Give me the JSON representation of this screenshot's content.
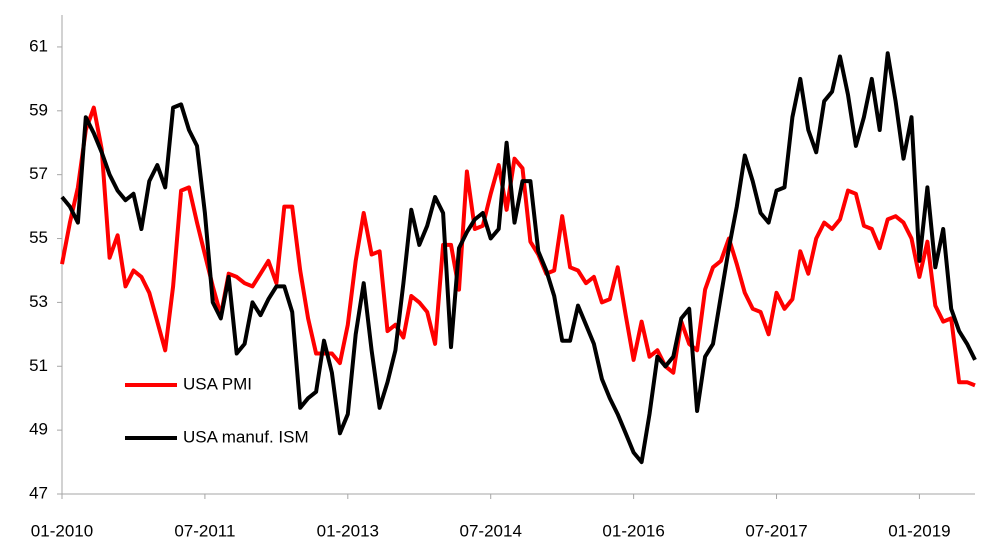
{
  "chart_data": {
    "type": "line",
    "categories": [
      "01-2010",
      null,
      null,
      null,
      null,
      null,
      null,
      null,
      null,
      null,
      null,
      null,
      null,
      null,
      null,
      null,
      null,
      null,
      "07-2011",
      null,
      null,
      null,
      null,
      null,
      null,
      null,
      null,
      null,
      null,
      null,
      null,
      null,
      null,
      null,
      null,
      null,
      "01-2013",
      null,
      null,
      null,
      null,
      null,
      null,
      null,
      null,
      null,
      null,
      null,
      null,
      null,
      null,
      null,
      null,
      null,
      "07-2014",
      null,
      null,
      null,
      null,
      null,
      null,
      null,
      null,
      null,
      null,
      null,
      null,
      null,
      null,
      null,
      null,
      null,
      "01-2016",
      null,
      null,
      null,
      null,
      null,
      null,
      null,
      null,
      null,
      null,
      null,
      null,
      null,
      null,
      null,
      null,
      null,
      "07-2017",
      null,
      null,
      null,
      null,
      null,
      null,
      null,
      null,
      null,
      null,
      null,
      null,
      null,
      null,
      null,
      null,
      null,
      "01-2019",
      null,
      null,
      null,
      null,
      null,
      null,
      null
    ],
    "series": [
      {
        "name": "USA PMI",
        "color": "#ff0000",
        "values": [
          54.2,
          55.5,
          56.6,
          58.4,
          59.1,
          57.8,
          54.4,
          55.1,
          53.5,
          54.0,
          53.8,
          53.3,
          52.4,
          51.5,
          53.5,
          56.5,
          56.6,
          55.5,
          54.5,
          53.5,
          52.6,
          53.9,
          53.8,
          53.6,
          53.5,
          53.9,
          54.3,
          53.6,
          56.0,
          56.0,
          54.0,
          52.5,
          51.4,
          51.4,
          51.4,
          51.1,
          52.3,
          54.3,
          55.8,
          54.5,
          54.6,
          52.1,
          52.3,
          51.9,
          53.2,
          53.0,
          52.7,
          51.7,
          54.8,
          54.8,
          53.4,
          57.1,
          55.3,
          55.4,
          56.4,
          57.3,
          55.9,
          57.5,
          57.2,
          54.9,
          54.5,
          53.9,
          54.0,
          55.7,
          54.1,
          54.0,
          53.6,
          53.8,
          53.0,
          53.1,
          54.1,
          52.6,
          51.2,
          52.4,
          51.3,
          51.5,
          51.0,
          50.8,
          52.4,
          51.7,
          51.5,
          53.4,
          54.1,
          54.3,
          55.0,
          54.2,
          53.3,
          52.8,
          52.7,
          52.0,
          53.3,
          52.8,
          53.1,
          54.6,
          53.9,
          55.0,
          55.5,
          55.3,
          55.6,
          56.5,
          56.4,
          55.4,
          55.3,
          54.7,
          55.6,
          55.7,
          55.5,
          55.0,
          53.8,
          54.9,
          52.9,
          52.4,
          52.5,
          50.5,
          50.5,
          50.4
        ]
      },
      {
        "name": "USA manuf. ISM",
        "color": "#000000",
        "values": [
          56.3,
          56.0,
          55.5,
          58.8,
          58.3,
          57.7,
          57.0,
          56.5,
          56.2,
          56.4,
          55.3,
          56.8,
          57.3,
          56.6,
          59.1,
          59.2,
          58.4,
          57.9,
          55.8,
          53.0,
          52.5,
          53.8,
          51.4,
          51.7,
          53.0,
          52.6,
          53.1,
          53.5,
          53.5,
          52.7,
          49.7,
          50.0,
          50.2,
          51.8,
          50.8,
          48.9,
          49.5,
          52.0,
          53.6,
          51.5,
          49.7,
          50.5,
          51.5,
          53.6,
          55.9,
          54.8,
          55.4,
          56.3,
          55.8,
          51.6,
          54.7,
          55.2,
          55.6,
          55.8,
          55.0,
          55.3,
          58.0,
          55.5,
          56.8,
          56.8,
          54.6,
          54.0,
          53.2,
          51.8,
          51.8,
          52.9,
          52.3,
          51.7,
          50.6,
          50.0,
          49.5,
          48.9,
          48.3,
          48.0,
          49.5,
          51.3,
          51.0,
          51.3,
          52.5,
          52.8,
          49.6,
          51.3,
          51.7,
          53.2,
          54.7,
          56.0,
          57.6,
          56.8,
          55.8,
          55.5,
          56.5,
          56.6,
          58.8,
          60.0,
          58.4,
          57.7,
          59.3,
          59.6,
          60.7,
          59.5,
          57.9,
          58.8,
          60.0,
          58.4,
          60.8,
          59.3,
          57.5,
          58.8,
          54.3,
          56.6,
          54.1,
          55.3,
          52.8,
          52.1,
          51.7,
          51.2
        ]
      }
    ],
    "ylim": [
      47,
      62
    ],
    "yticks": [
      47,
      49,
      51,
      53,
      55,
      57,
      59,
      61
    ],
    "grid": false,
    "legend": "left"
  }
}
